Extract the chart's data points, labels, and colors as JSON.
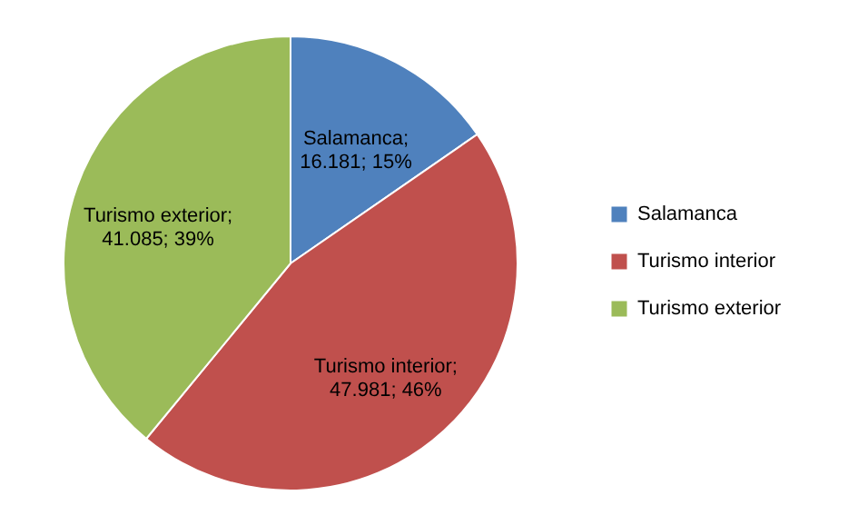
{
  "chart_data": {
    "type": "pie",
    "categories": [
      "Salamanca",
      "Turismo interior",
      "Turismo exterior"
    ],
    "values": [
      16181,
      47981,
      41085
    ],
    "colors": [
      "#4f81bd",
      "#c0504d",
      "#9bbb59"
    ],
    "value_labels": [
      "Salamanca;\n16.181; 15%",
      "Turismo interior;\n47.981; 46%",
      "Turismo exterior;\n41.085; 39%"
    ],
    "legend": "right"
  }
}
